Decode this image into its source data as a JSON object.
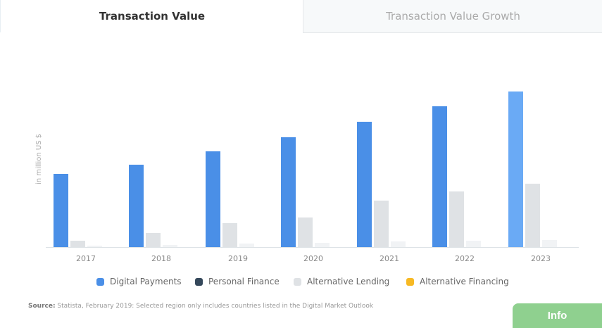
{
  "tabs": [
    {
      "label": "Transaction Value",
      "active": true
    },
    {
      "label": "Transaction Value Growth",
      "active": false
    }
  ],
  "chart_data": {
    "type": "bar",
    "categories": [
      "2017",
      "2018",
      "2019",
      "2020",
      "2021",
      "2022",
      "2023"
    ],
    "ylabel": "in million US $",
    "ylim": [
      0,
      230
    ],
    "grid": false,
    "legend_position": "bottom",
    "series": [
      {
        "name": "Digital Payments",
        "color": "#4a8fe7",
        "values": [
          104,
          117,
          136,
          156,
          178,
          200,
          221
        ]
      },
      {
        "name": "Personal Finance",
        "color": "#35485b",
        "values": [
          0,
          0,
          0,
          0,
          0,
          0,
          0
        ]
      },
      {
        "name": "Alternative Lending",
        "color": "#dfe2e5",
        "values": [
          9,
          20,
          34,
          42,
          66,
          79,
          90
        ]
      },
      {
        "name": "Alternative Financing",
        "color": "#f7b924",
        "values": [
          2,
          3,
          5,
          6,
          8,
          9,
          10
        ]
      }
    ],
    "highlight_color": "#6aaaf5"
  },
  "source": {
    "label": "Source:",
    "text": " Statista, February 2019: Selected region only includes countries listed in the Digital Market Outlook"
  },
  "info_button": "Info"
}
